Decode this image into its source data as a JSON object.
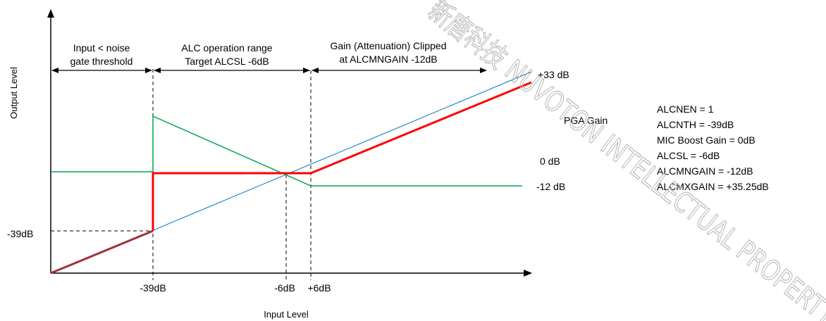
{
  "axes": {
    "y_label": "Output Level",
    "x_label": "Input Level"
  },
  "regions": {
    "noise_gate": [
      "Input < noise",
      "gate threshold"
    ],
    "alc_range": [
      "ALC operation range",
      "Target ALCSL -6dB"
    ],
    "clipped": [
      "Gain (Attenuation) Clipped",
      "at ALCMNGAIN -12dB"
    ]
  },
  "ticks": {
    "x": [
      "-39dB",
      "-6dB",
      "+6dB"
    ],
    "y": [
      "-39dB"
    ]
  },
  "gain_labels": {
    "top": "+33 dB",
    "pga": "PGA Gain",
    "zero": "0 dB",
    "min": "-12 dB"
  },
  "settings": [
    "ALCNEN = 1",
    "ALCNTH = -39dB",
    "MIC Boost Gain = 0dB",
    "ALCSL = -6dB",
    "ALCMNGAIN = -12dB",
    "ALCMXGAIN = +35.25dB"
  ],
  "watermark_text": "新唐科技 NUVOTON INTELLECTUAL PROPERTY",
  "colors": {
    "output_curve": "#ff0000",
    "pga_gain_curve": "#00a651",
    "reference_line": "#0070c0",
    "input_segment": "#a0303a"
  }
}
